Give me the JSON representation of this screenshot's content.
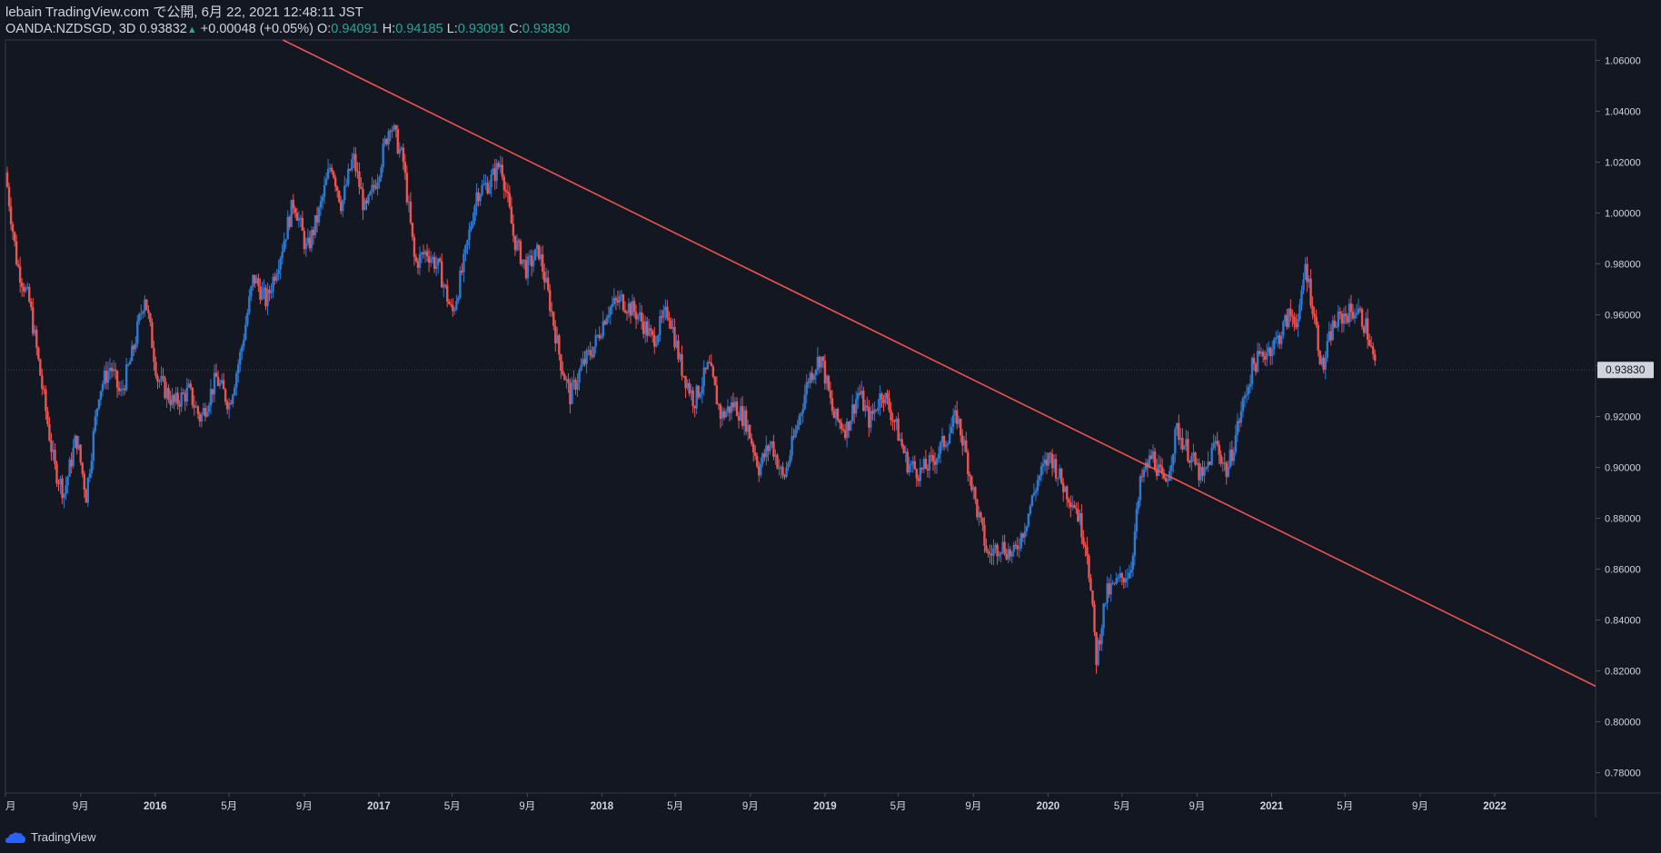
{
  "header": {
    "publisher": "lebain TradingView.com で公開, 6月 22, 2021 12:48:11 JST",
    "symbol": "OANDA:NZDSGD, 3D 0.93832",
    "change_arrow": "▲",
    "change": "+0.00048 (+0.05%)",
    "o_label": "O:",
    "o_value": "0.94091",
    "h_label": "H:",
    "h_value": "0.94185",
    "l_label": "L:",
    "l_value": "0.93091",
    "c_label": "C:",
    "c_value": "0.93830"
  },
  "footer": {
    "brand": "TradingView",
    "brand_icon": "tradingview-cloud-icon"
  },
  "colors": {
    "background": "#131722",
    "up": "#2f7ad1",
    "down": "#ef5350",
    "trendline": "#ef5350",
    "text": "#d1d4dc",
    "accent": "#26a69a"
  },
  "chart_data": {
    "type": "candlestick",
    "symbol": "OANDA:NZDSGD",
    "interval": "3D",
    "ylim": [
      0.772,
      1.068
    ],
    "xlim": [
      "2015-05-01",
      "2022-06-15"
    ],
    "yticks": [
      "1.06000",
      "1.04000",
      "1.02000",
      "1.00000",
      "0.98000",
      "0.96000",
      "0.94000",
      "0.92000",
      "0.90000",
      "0.88000",
      "0.86000",
      "0.84000",
      "0.82000",
      "0.80000",
      "0.78000"
    ],
    "xticks": [
      {
        "date": "2015-05-01",
        "label": "月"
      },
      {
        "date": "2015-09-01",
        "label": "9月"
      },
      {
        "date": "2016-01-01",
        "label": "2016"
      },
      {
        "date": "2016-05-01",
        "label": "5月"
      },
      {
        "date": "2016-09-01",
        "label": "9月"
      },
      {
        "date": "2017-01-01",
        "label": "2017"
      },
      {
        "date": "2017-05-01",
        "label": "5月"
      },
      {
        "date": "2017-09-01",
        "label": "9月"
      },
      {
        "date": "2018-01-01",
        "label": "2018"
      },
      {
        "date": "2018-05-01",
        "label": "5月"
      },
      {
        "date": "2018-09-01",
        "label": "9月"
      },
      {
        "date": "2019-01-01",
        "label": "2019"
      },
      {
        "date": "2019-05-01",
        "label": "5月"
      },
      {
        "date": "2019-09-01",
        "label": "9月"
      },
      {
        "date": "2020-01-01",
        "label": "2020"
      },
      {
        "date": "2020-05-01",
        "label": "5月"
      },
      {
        "date": "2020-09-01",
        "label": "9月"
      },
      {
        "date": "2021-01-01",
        "label": "2021"
      },
      {
        "date": "2021-05-01",
        "label": "5月"
      },
      {
        "date": "2021-09-01",
        "label": "9月"
      },
      {
        "date": "2022-01-01",
        "label": "2022"
      }
    ],
    "last_price": "0.93830",
    "last_price_value": 0.9383,
    "trendline": {
      "start": {
        "date": "2016-07-28",
        "price": 1.068
      },
      "end": {
        "date": "2022-06-15",
        "price": 0.814
      }
    },
    "path": [
      {
        "date": "2015-05-01",
        "price": 1.016
      },
      {
        "date": "2015-05-20",
        "price": 0.98
      },
      {
        "date": "2015-06-10",
        "price": 0.964
      },
      {
        "date": "2015-07-01",
        "price": 0.93
      },
      {
        "date": "2015-07-20",
        "price": 0.9
      },
      {
        "date": "2015-08-05",
        "price": 0.89
      },
      {
        "date": "2015-08-25",
        "price": 0.912
      },
      {
        "date": "2015-09-10",
        "price": 0.889
      },
      {
        "date": "2015-10-01",
        "price": 0.93
      },
      {
        "date": "2015-10-20",
        "price": 0.94
      },
      {
        "date": "2015-11-05",
        "price": 0.928
      },
      {
        "date": "2015-11-25",
        "price": 0.945
      },
      {
        "date": "2015-12-15",
        "price": 0.968
      },
      {
        "date": "2016-01-05",
        "price": 0.935
      },
      {
        "date": "2016-02-01",
        "price": 0.925
      },
      {
        "date": "2016-02-25",
        "price": 0.93
      },
      {
        "date": "2016-03-15",
        "price": 0.919
      },
      {
        "date": "2016-04-10",
        "price": 0.935
      },
      {
        "date": "2016-05-01",
        "price": 0.925
      },
      {
        "date": "2016-05-20",
        "price": 0.945
      },
      {
        "date": "2016-06-10",
        "price": 0.975
      },
      {
        "date": "2016-07-01",
        "price": 0.965
      },
      {
        "date": "2016-07-25",
        "price": 0.985
      },
      {
        "date": "2016-08-15",
        "price": 1.005
      },
      {
        "date": "2016-09-05",
        "price": 0.985
      },
      {
        "date": "2016-09-25",
        "price": 1.0
      },
      {
        "date": "2016-10-15",
        "price": 1.02
      },
      {
        "date": "2016-11-01",
        "price": 1.003
      },
      {
        "date": "2016-11-20",
        "price": 1.022
      },
      {
        "date": "2016-12-10",
        "price": 1.0
      },
      {
        "date": "2016-12-30",
        "price": 1.015
      },
      {
        "date": "2017-01-20",
        "price": 1.036
      },
      {
        "date": "2017-02-10",
        "price": 1.02
      },
      {
        "date": "2017-03-01",
        "price": 0.98
      },
      {
        "date": "2017-03-20",
        "price": 0.985
      },
      {
        "date": "2017-04-10",
        "price": 0.978
      },
      {
        "date": "2017-05-01",
        "price": 0.96
      },
      {
        "date": "2017-05-20",
        "price": 0.98
      },
      {
        "date": "2017-06-10",
        "price": 1.008
      },
      {
        "date": "2017-07-01",
        "price": 1.012
      },
      {
        "date": "2017-07-20",
        "price": 1.02
      },
      {
        "date": "2017-08-10",
        "price": 0.99
      },
      {
        "date": "2017-08-30",
        "price": 0.978
      },
      {
        "date": "2017-09-20",
        "price": 0.985
      },
      {
        "date": "2017-10-10",
        "price": 0.962
      },
      {
        "date": "2017-10-25",
        "price": 0.942
      },
      {
        "date": "2017-11-10",
        "price": 0.928
      },
      {
        "date": "2017-11-30",
        "price": 0.94
      },
      {
        "date": "2017-12-20",
        "price": 0.948
      },
      {
        "date": "2018-01-10",
        "price": 0.962
      },
      {
        "date": "2018-02-01",
        "price": 0.966
      },
      {
        "date": "2018-03-01",
        "price": 0.96
      },
      {
        "date": "2018-03-25",
        "price": 0.95
      },
      {
        "date": "2018-04-20",
        "price": 0.962
      },
      {
        "date": "2018-05-10",
        "price": 0.94
      },
      {
        "date": "2018-06-01",
        "price": 0.926
      },
      {
        "date": "2018-06-25",
        "price": 0.94
      },
      {
        "date": "2018-07-15",
        "price": 0.92
      },
      {
        "date": "2018-08-05",
        "price": 0.925
      },
      {
        "date": "2018-08-25",
        "price": 0.918
      },
      {
        "date": "2018-09-15",
        "price": 0.9
      },
      {
        "date": "2018-10-05",
        "price": 0.91
      },
      {
        "date": "2018-10-25",
        "price": 0.895
      },
      {
        "date": "2018-11-15",
        "price": 0.915
      },
      {
        "date": "2018-12-05",
        "price": 0.935
      },
      {
        "date": "2018-12-25",
        "price": 0.944
      },
      {
        "date": "2019-01-15",
        "price": 0.92
      },
      {
        "date": "2019-02-05",
        "price": 0.915
      },
      {
        "date": "2019-02-25",
        "price": 0.93
      },
      {
        "date": "2019-03-15",
        "price": 0.918
      },
      {
        "date": "2019-04-05",
        "price": 0.93
      },
      {
        "date": "2019-04-25",
        "price": 0.918
      },
      {
        "date": "2019-05-15",
        "price": 0.902
      },
      {
        "date": "2019-06-05",
        "price": 0.898
      },
      {
        "date": "2019-06-25",
        "price": 0.902
      },
      {
        "date": "2019-07-15",
        "price": 0.91
      },
      {
        "date": "2019-08-05",
        "price": 0.92
      },
      {
        "date": "2019-08-20",
        "price": 0.905
      },
      {
        "date": "2019-09-05",
        "price": 0.885
      },
      {
        "date": "2019-09-25",
        "price": 0.865
      },
      {
        "date": "2019-10-15",
        "price": 0.87
      },
      {
        "date": "2019-11-05",
        "price": 0.865
      },
      {
        "date": "2019-11-25",
        "price": 0.878
      },
      {
        "date": "2019-12-15",
        "price": 0.895
      },
      {
        "date": "2020-01-05",
        "price": 0.905
      },
      {
        "date": "2020-01-25",
        "price": 0.893
      },
      {
        "date": "2020-02-15",
        "price": 0.885
      },
      {
        "date": "2020-03-05",
        "price": 0.868
      },
      {
        "date": "2020-03-20",
        "price": 0.825
      },
      {
        "date": "2020-04-05",
        "price": 0.85
      },
      {
        "date": "2020-04-25",
        "price": 0.855
      },
      {
        "date": "2020-05-15",
        "price": 0.86
      },
      {
        "date": "2020-06-01",
        "price": 0.895
      },
      {
        "date": "2020-06-20",
        "price": 0.905
      },
      {
        "date": "2020-07-10",
        "price": 0.892
      },
      {
        "date": "2020-07-30",
        "price": 0.915
      },
      {
        "date": "2020-08-20",
        "price": 0.905
      },
      {
        "date": "2020-09-10",
        "price": 0.895
      },
      {
        "date": "2020-10-01",
        "price": 0.91
      },
      {
        "date": "2020-10-20",
        "price": 0.898
      },
      {
        "date": "2020-11-10",
        "price": 0.92
      },
      {
        "date": "2020-12-01",
        "price": 0.94
      },
      {
        "date": "2020-12-20",
        "price": 0.945
      },
      {
        "date": "2021-01-10",
        "price": 0.95
      },
      {
        "date": "2021-01-30",
        "price": 0.96
      },
      {
        "date": "2021-02-15",
        "price": 0.958
      },
      {
        "date": "2021-02-25",
        "price": 0.98
      },
      {
        "date": "2021-03-10",
        "price": 0.962
      },
      {
        "date": "2021-03-25",
        "price": 0.938
      },
      {
        "date": "2021-04-10",
        "price": 0.955
      },
      {
        "date": "2021-04-30",
        "price": 0.96
      },
      {
        "date": "2021-05-20",
        "price": 0.962
      },
      {
        "date": "2021-06-05",
        "price": 0.955
      },
      {
        "date": "2021-06-20",
        "price": 0.9383
      }
    ]
  }
}
